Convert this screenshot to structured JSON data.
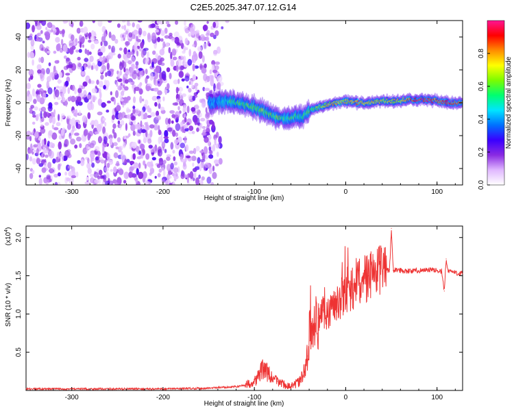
{
  "title": "C2E5.2025.347.07.12.G14",
  "chart_data": [
    {
      "type": "heatmap",
      "title": "C2E5.2025.347.07.12.G14",
      "xlabel": "Height of straight line (km)",
      "ylabel": "Frequency (Hz)",
      "xlim": [
        -350,
        128
      ],
      "ylim": [
        -50,
        50
      ],
      "xticks": [
        -300,
        -200,
        -100,
        0,
        100
      ],
      "yticks": [
        -40,
        -20,
        0,
        20,
        40
      ],
      "colorbar": {
        "label": "Normalized spectral amplitude",
        "range": [
          0,
          1
        ],
        "ticks": [
          "0.0",
          "0.2",
          "0.4",
          "0.6",
          "0.8"
        ],
        "tick_values": [
          0.0,
          0.2,
          0.4,
          0.6,
          0.8
        ],
        "colormap": [
          "#ffffff",
          "#e0b8ff",
          "#8a2be2",
          "#3a00ff",
          "#0070ff",
          "#00e5ff",
          "#00ff70",
          "#7cfc00",
          "#ffff00",
          "#ff8c00",
          "#ff0000",
          "#ff1493"
        ]
      },
      "noise_region": {
        "x_range": [
          -350,
          -140
        ],
        "freq_range": [
          -50,
          50
        ]
      },
      "signal_track": {
        "x": [
          -150,
          -135,
          -120,
          -105,
          -95,
          -85,
          -75,
          -65,
          -55,
          -48,
          -40,
          -30,
          -20,
          -10,
          0,
          10,
          25,
          40,
          55,
          70,
          85,
          100,
          115,
          128
        ],
        "freq": [
          0,
          1,
          0,
          -2,
          -4,
          -7,
          -9,
          -10,
          -8,
          -9,
          -5,
          -3,
          -1,
          0,
          1,
          0,
          0,
          1,
          1,
          2,
          2,
          1,
          0,
          0
        ],
        "amplitude": [
          0.35,
          0.45,
          0.55,
          0.6,
          0.65,
          0.6,
          0.6,
          0.55,
          0.55,
          0.5,
          0.6,
          0.65,
          0.7,
          0.75,
          0.7,
          0.8,
          0.75,
          0.7,
          0.7,
          0.8,
          0.95,
          0.85,
          0.95,
          0.8
        ]
      }
    },
    {
      "type": "line",
      "xlabel": "Height of straight line (km)",
      "ylabel": "SNR (10 * v/v)",
      "yscale_label": "(x10",
      "yscale_exp": "4",
      "xlim": [
        -350,
        128
      ],
      "ylim": [
        0,
        2.15
      ],
      "xticks": [
        -300,
        -200,
        -100,
        0,
        100
      ],
      "yticks": [
        "0.5",
        "1.0",
        "1.5",
        "2.0"
      ],
      "ytick_values": [
        0.5,
        1.0,
        1.5,
        2.0
      ],
      "series": [
        {
          "name": "SNR",
          "color": "#ee3333",
          "x": [
            -350,
            -300,
            -250,
            -200,
            -150,
            -120,
            -110,
            -100,
            -95,
            -90,
            -85,
            -80,
            -75,
            -70,
            -65,
            -60,
            -55,
            -50,
            -45,
            -42,
            -40,
            -38,
            -36,
            -34,
            -30,
            -25,
            -20,
            -15,
            -10,
            -5,
            0,
            5,
            10,
            15,
            20,
            25,
            30,
            35,
            40,
            45,
            48,
            50,
            52,
            55,
            60,
            70,
            80,
            90,
            100,
            105,
            108,
            110,
            112,
            115,
            120,
            128
          ],
          "y": [
            0.02,
            0.02,
            0.02,
            0.02,
            0.03,
            0.05,
            0.07,
            0.12,
            0.2,
            0.3,
            0.22,
            0.15,
            0.12,
            0.1,
            0.06,
            0.05,
            0.08,
            0.12,
            0.25,
            0.45,
            0.65,
            0.9,
            0.75,
            0.85,
            0.95,
            1.05,
            1.0,
            1.1,
            1.15,
            1.2,
            1.25,
            1.3,
            1.35,
            1.4,
            1.45,
            1.5,
            1.53,
            1.55,
            1.56,
            1.57,
            1.58,
            2.12,
            1.57,
            1.58,
            1.57,
            1.56,
            1.57,
            1.58,
            1.57,
            1.56,
            1.3,
            1.72,
            1.55,
            1.56,
            1.54,
            1.53
          ]
        }
      ]
    }
  ]
}
